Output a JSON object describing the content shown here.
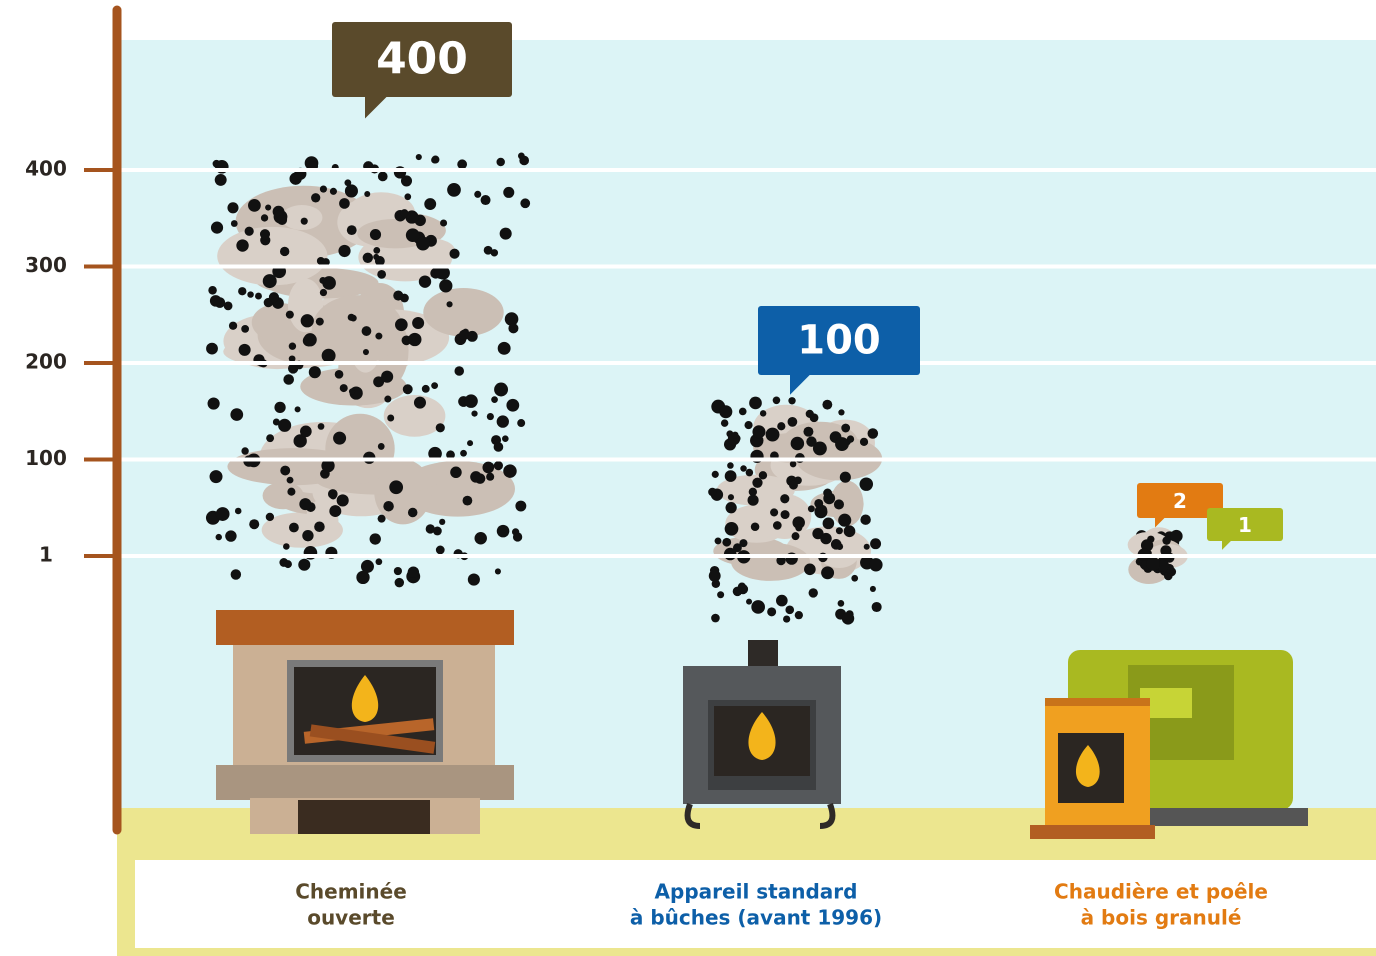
{
  "chart_data": {
    "type": "bubble-callout",
    "categories": [
      [
        "Cheminée",
        "ouverte"
      ],
      [
        "Appareil  standard",
        "à bûches (avant 1996)"
      ],
      [
        "Chaudière et poêle",
        "à bois granulé"
      ],
      null
    ],
    "values": [
      400,
      100,
      2,
      1
    ],
    "colors": [
      "#5a4a2b",
      "#0d5fa8",
      "#e27b12",
      "#a9b921"
    ],
    "yticks": [
      400,
      300,
      200,
      100,
      1
    ],
    "grid": true
  }
}
